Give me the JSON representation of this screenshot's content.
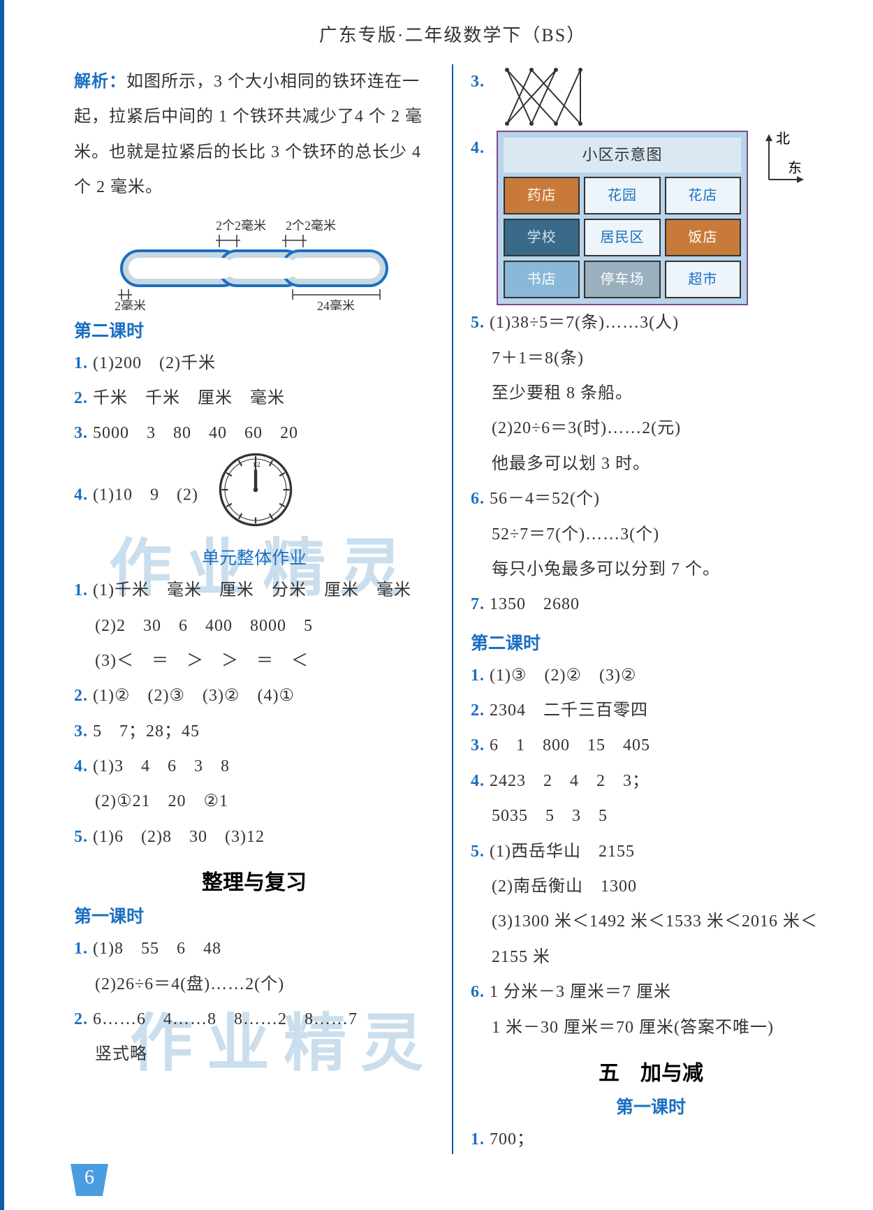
{
  "page": {
    "header": "广东专版·二年级数学下（BS）",
    "number": "6",
    "watermark": "作业精灵"
  },
  "left": {
    "analysis_label": "解析：",
    "analysis_text": "如图所示，3 个大小相同的铁环连在一起，拉紧后中间的 1 个铁环共减少了4 个 2 毫米。也就是拉紧后的长比 3 个铁环的总长少 4 个 2 毫米。",
    "chain": {
      "top_label_left": "2个2毫米",
      "top_label_right": "2个2毫米",
      "bottom_left": "2毫米",
      "bottom_right": "24毫米",
      "fill": "#c9d7e2",
      "stroke": "#1a6fc2"
    },
    "lesson2_title": "第二课时",
    "q1": {
      "n": "1.",
      "text": "(1)200　(2)千米"
    },
    "q2": {
      "n": "2.",
      "text": "千米　千米　厘米　毫米"
    },
    "q3": {
      "n": "3.",
      "text": "5000　3　80　40　60　20"
    },
    "q4": {
      "n": "4.",
      "text": "(1)10　9　(2)"
    },
    "clock": {
      "hour_angle": 0,
      "minute_angle": 0
    },
    "unit_work_title": "单元整体作业",
    "u1_1": {
      "n": "1.",
      "text": "(1)千米　毫米　厘米　分米　厘米　毫米"
    },
    "u1_2": "(2)2　30　6　400　8000　5",
    "u1_3": "(3)＜　＝　＞　＞　＝　＜",
    "u2": {
      "n": "2.",
      "text": "(1)②　(2)③　(3)②　(4)①"
    },
    "u3": {
      "n": "3.",
      "text": "5　7；28；45"
    },
    "u4_1": {
      "n": "4.",
      "text": "(1)3　4　6　3　8"
    },
    "u4_2": "(2)①21　20　②1",
    "u5": {
      "n": "5.",
      "text": "(1)6　(2)8　30　(3)12"
    },
    "review_title": "整理与复习",
    "lesson1_title": "第一课时",
    "r1_1": {
      "n": "1.",
      "text": "(1)8　55　6　48"
    },
    "r1_2": "(2)26÷6＝4(盘)……2(个)",
    "r2": {
      "n": "2.",
      "text": "6……6　4……8　8……2　8……7"
    },
    "r2b": "竖式略"
  },
  "right": {
    "q3": {
      "n": "3."
    },
    "q4": {
      "n": "4."
    },
    "map": {
      "title": "小区示意图",
      "compass_n": "北",
      "compass_e": "东",
      "cells": [
        {
          "label": "药店",
          "cls": "cell-orange"
        },
        {
          "label": "花园",
          "cls": "cell-white"
        },
        {
          "label": "花店",
          "cls": "cell-white"
        },
        {
          "label": "学校",
          "cls": "cell-blue1"
        },
        {
          "label": "居民区",
          "cls": "cell-white"
        },
        {
          "label": "饭店",
          "cls": "cell-hl"
        },
        {
          "label": "书店",
          "cls": "cell-lightblue"
        },
        {
          "label": "停车场",
          "cls": "cell-gray"
        },
        {
          "label": "超市",
          "cls": "cell-white"
        }
      ]
    },
    "q5_1": {
      "n": "5.",
      "text": "(1)38÷5＝7(条)……3(人)"
    },
    "q5_2": "7＋1＝8(条)",
    "q5_3": "至少要租 8 条船。",
    "q5_4": "(2)20÷6＝3(时)……2(元)",
    "q5_5": "他最多可以划 3 时。",
    "q6_1": {
      "n": "6.",
      "text": "56－4＝52(个)"
    },
    "q6_2": "52÷7＝7(个)……3(个)",
    "q6_3": "每只小兔最多可以分到 7 个。",
    "q7": {
      "n": "7.",
      "text": "1350　2680"
    },
    "lesson2_title": "第二课时",
    "l2q1": {
      "n": "1.",
      "text": "(1)③　(2)②　(3)②"
    },
    "l2q2": {
      "n": "2.",
      "text": "2304　二千三百零四"
    },
    "l2q3": {
      "n": "3.",
      "text": "6　1　800　15　405"
    },
    "l2q4_1": {
      "n": "4.",
      "text": "2423　2　4　2　3；"
    },
    "l2q4_2": "5035　5　3　5",
    "l2q5_1": {
      "n": "5.",
      "text": "(1)西岳华山　2155"
    },
    "l2q5_2": "(2)南岳衡山　1300",
    "l2q5_3": "(3)1300 米＜1492 米＜1533 米＜2016 米＜",
    "l2q5_4": "2155 米",
    "l2q6_1": {
      "n": "6.",
      "text": "1 分米－3 厘米＝7 厘米"
    },
    "l2q6_2": "1 米－30 厘米＝70 厘米(答案不唯一)",
    "chapter5_title": "五　加与减",
    "c5_lesson1": "第一课时",
    "c5_q1": {
      "n": "1.",
      "text": "700；"
    }
  }
}
